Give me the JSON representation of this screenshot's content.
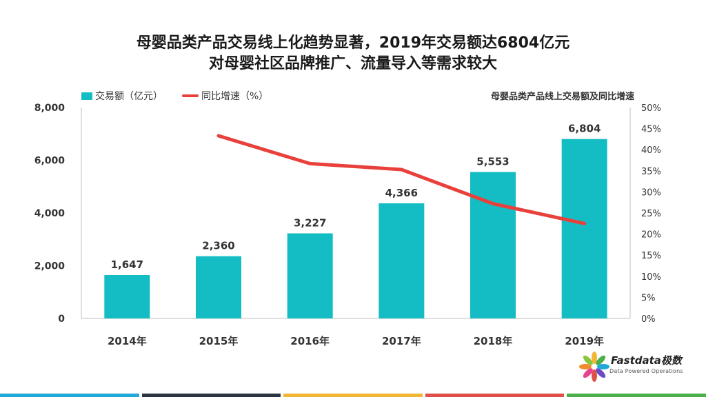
{
  "header": {
    "title_line1": "母婴品类产品交易线上化趋势显著，2019年交易额达6804亿元",
    "title_line2": "对母婴社区品牌推广、流量导入等需求较大"
  },
  "legend": {
    "bar_label": "交易额（亿元）",
    "line_label": "同比增速（%）"
  },
  "chart_subtitle": "母婴品类产品线上交易额及同比增速",
  "logo": {
    "name": "Fastdata极数",
    "tagline": "Data Powered Operations"
  },
  "colors": {
    "bar": "#14BDC4",
    "line": "#E8413C",
    "footer": [
      "#1FA8D8",
      "#2B3440",
      "#F2B637",
      "#E0504A",
      "#4CB04A"
    ]
  },
  "chart_data": {
    "type": "bar",
    "categories": [
      "2014年",
      "2015年",
      "2016年",
      "2017年",
      "2018年",
      "2019年"
    ],
    "series": [
      {
        "name": "交易额（亿元）",
        "type": "bar",
        "axis": "left",
        "values": [
          1647,
          2360,
          3227,
          4366,
          5553,
          6804
        ],
        "labels": [
          "1,647",
          "2,360",
          "3,227",
          "4,366",
          "5,553",
          "6,804"
        ]
      },
      {
        "name": "同比增速（%）",
        "type": "line",
        "axis": "right",
        "values": [
          null,
          43.3,
          36.7,
          35.3,
          27.2,
          22.5
        ]
      }
    ],
    "y_left": {
      "lim": [
        0,
        8000
      ],
      "ticks": [
        "0",
        "2,000",
        "4,000",
        "6,000",
        "8,000"
      ]
    },
    "y_right": {
      "lim": [
        0,
        50
      ],
      "ticks": [
        "0%",
        "5%",
        "10%",
        "15%",
        "20%",
        "25%",
        "30%",
        "35%",
        "40%",
        "45%",
        "50%"
      ]
    },
    "grid": false,
    "legend_position": "top-left"
  }
}
